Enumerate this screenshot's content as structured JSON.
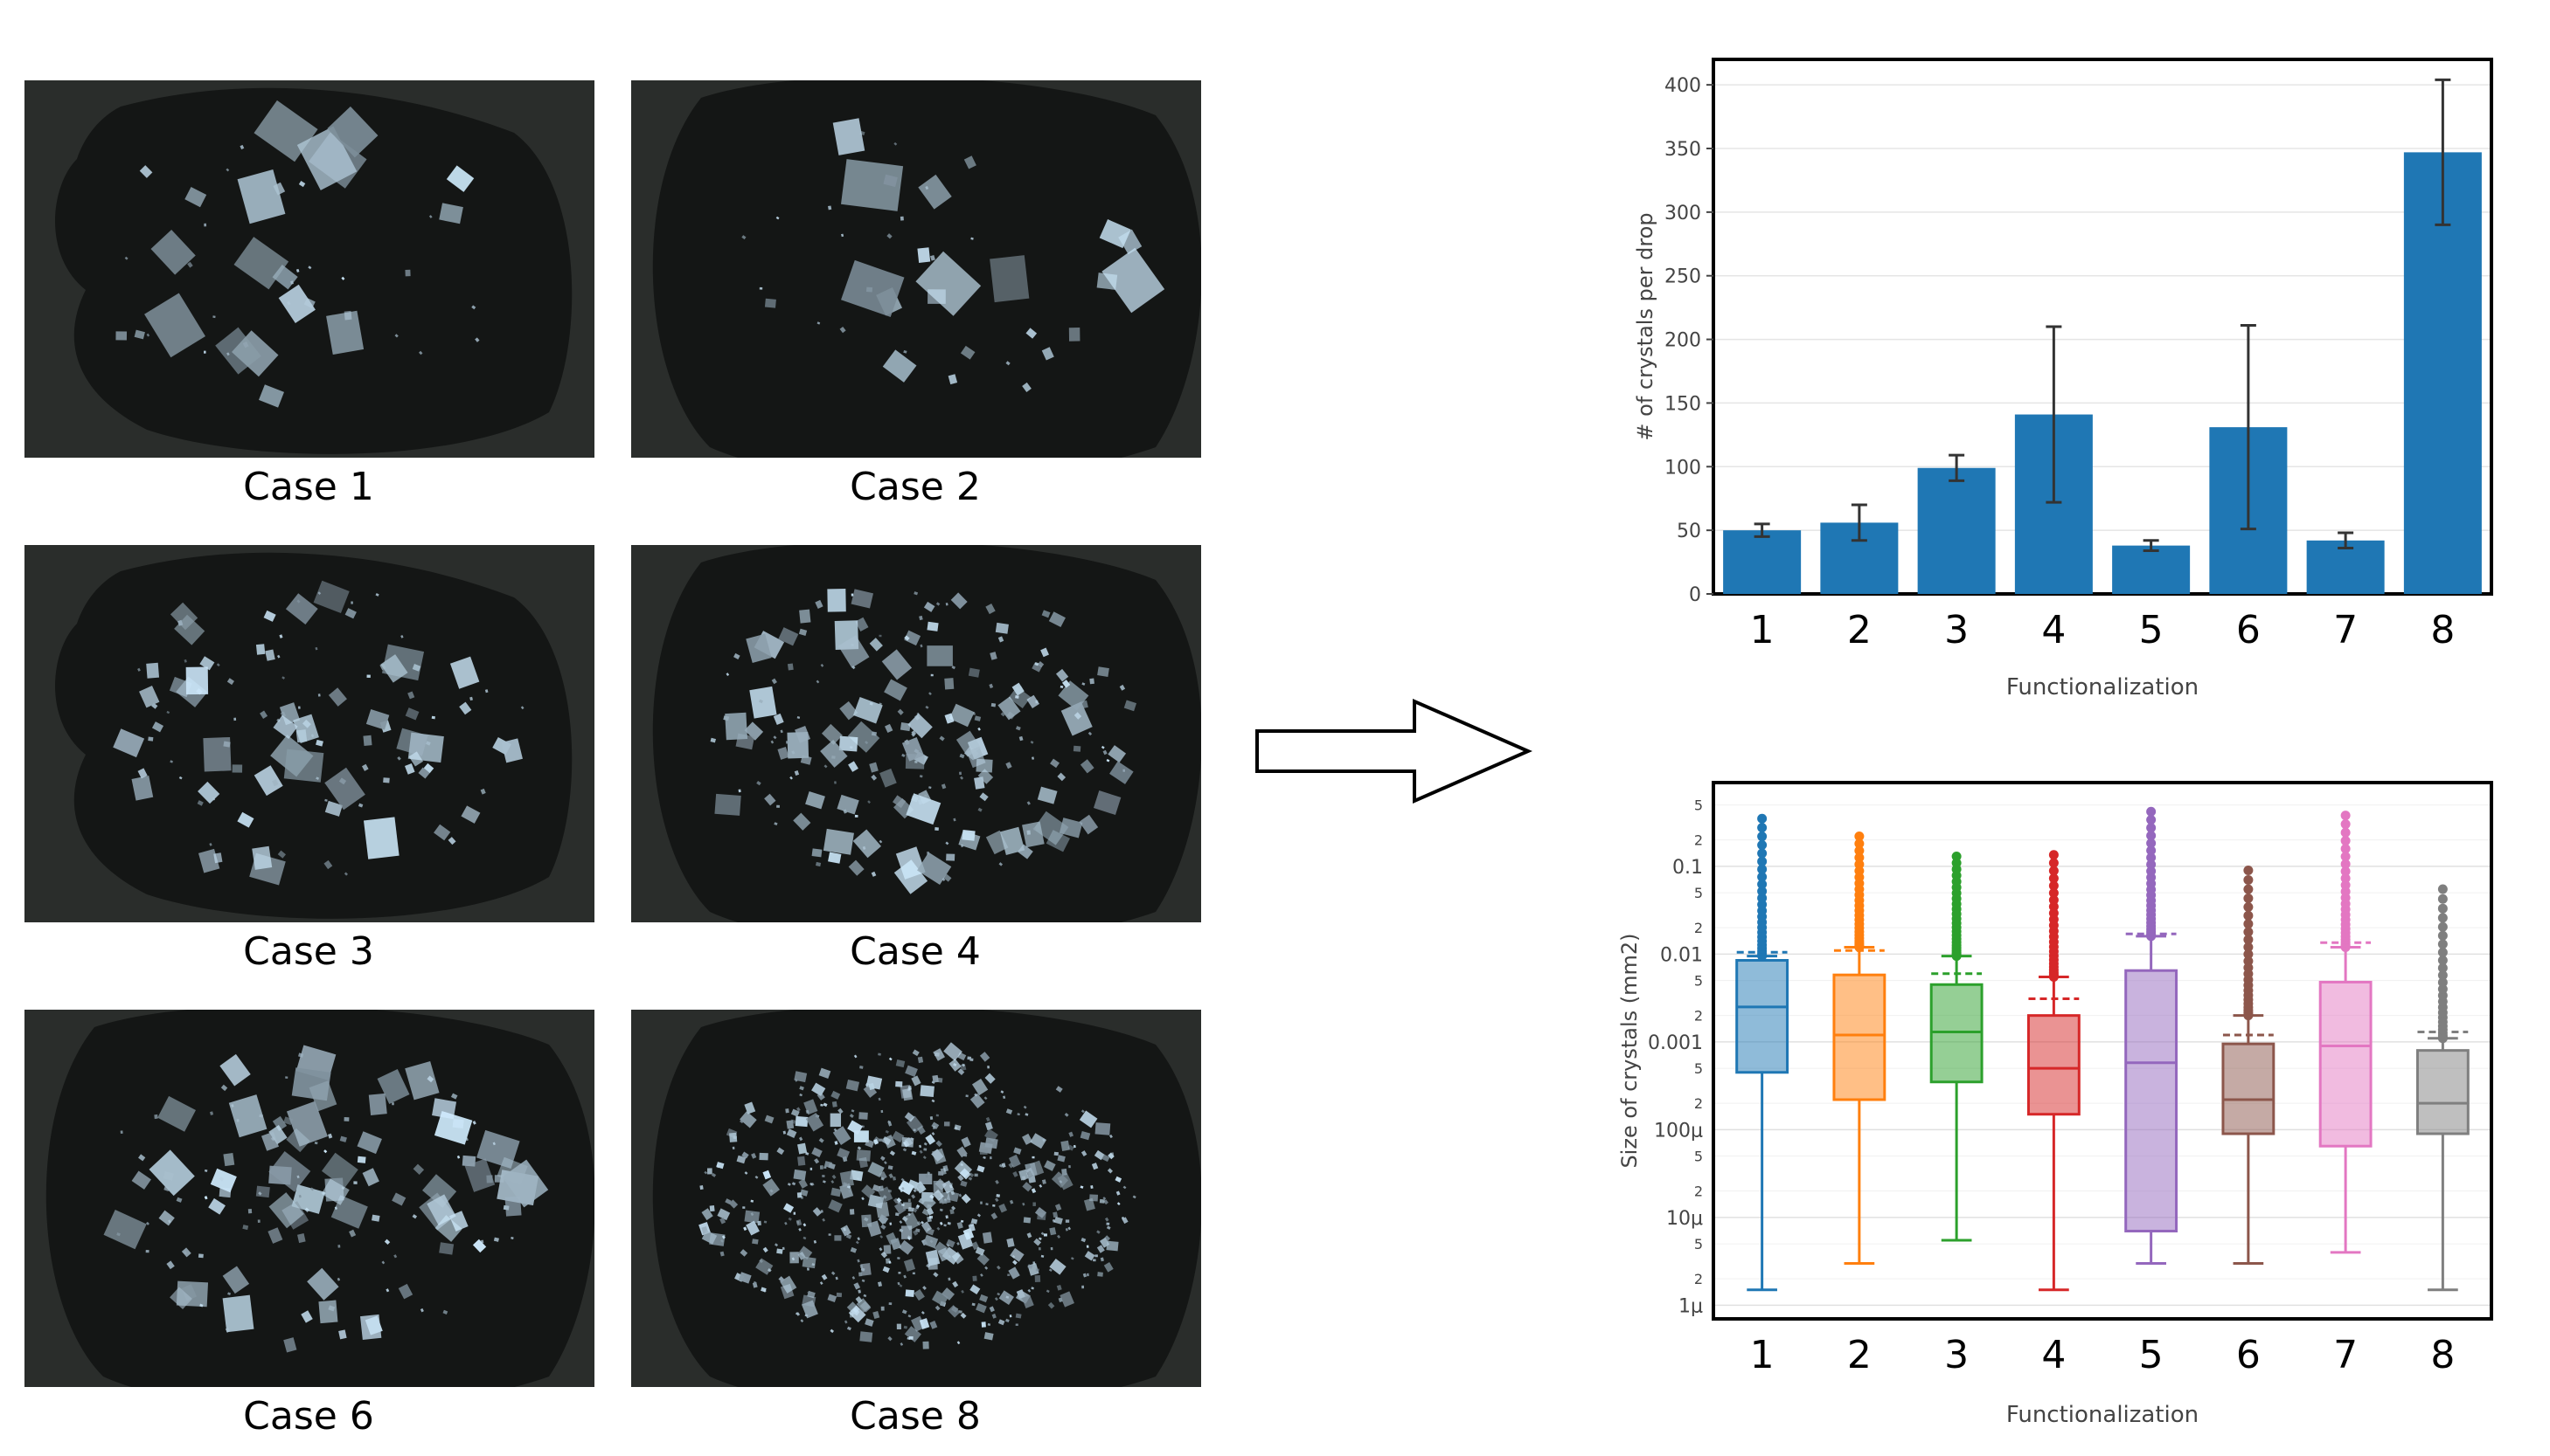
{
  "panels": [
    {
      "id": "case1",
      "caption": "Case 1",
      "crystal_count": 45,
      "max_size": 60,
      "drop_shape": "irregular"
    },
    {
      "id": "case2",
      "caption": "Case 2",
      "crystal_count": 40,
      "max_size": 70,
      "drop_shape": "round"
    },
    {
      "id": "case3",
      "caption": "Case 3",
      "crystal_count": 110,
      "max_size": 42,
      "drop_shape": "irregular"
    },
    {
      "id": "case4",
      "caption": "Case 4",
      "crystal_count": 220,
      "max_size": 30,
      "drop_shape": "round"
    },
    {
      "id": "case6",
      "caption": "Case 6",
      "crystal_count": 140,
      "max_size": 40,
      "drop_shape": "round"
    },
    {
      "id": "case8",
      "caption": "Case 8",
      "crystal_count": 650,
      "max_size": 14,
      "drop_shape": "round"
    }
  ],
  "chart_data": [
    {
      "type": "bar",
      "categories": [
        "1",
        "2",
        "3",
        "4",
        "5",
        "6",
        "7",
        "8"
      ],
      "values": [
        50,
        56,
        99,
        141,
        38,
        131,
        42,
        347
      ],
      "errors": [
        5,
        14,
        10,
        69,
        4,
        80,
        6,
        57
      ],
      "ylabel": "# of crystals per drop",
      "xlabel": "Functionalization",
      "ylim": [
        0,
        420
      ],
      "yticks": [
        0,
        50,
        100,
        150,
        200,
        250,
        300,
        350,
        400
      ],
      "bar_color": "#1f77b4",
      "grid": true
    },
    {
      "type": "box",
      "categories": [
        "1",
        "2",
        "3",
        "4",
        "5",
        "6",
        "7",
        "8"
      ],
      "ylabel": "Size of crystals (mm2)",
      "xlabel": "Functionalization",
      "yscale": "log",
      "ylim": [
        7e-07,
        0.9
      ],
      "major_ticks": [
        {
          "v": 1e-06,
          "label": "1μ"
        },
        {
          "v": 1e-05,
          "label": "10μ"
        },
        {
          "v": 0.0001,
          "label": "100μ"
        },
        {
          "v": 0.001,
          "label": "0.001"
        },
        {
          "v": 0.01,
          "label": "0.01"
        },
        {
          "v": 0.1,
          "label": "0.1"
        }
      ],
      "minor_ticks": [
        {
          "v": 2e-06,
          "label": "2"
        },
        {
          "v": 5e-06,
          "label": "5"
        },
        {
          "v": 2e-05,
          "label": "2"
        },
        {
          "v": 5e-05,
          "label": "5"
        },
        {
          "v": 0.0002,
          "label": "2"
        },
        {
          "v": 0.0005,
          "label": "5"
        },
        {
          "v": 0.002,
          "label": "2"
        },
        {
          "v": 0.005,
          "label": "5"
        },
        {
          "v": 0.02,
          "label": "2"
        },
        {
          "v": 0.05,
          "label": "5"
        },
        {
          "v": 0.2,
          "label": "2"
        },
        {
          "v": 0.5,
          "label": "5"
        }
      ],
      "series": [
        {
          "color": "#1f77b4",
          "min": 1.5e-06,
          "q1": 0.00045,
          "median": 0.0025,
          "q3": 0.0085,
          "upper": 0.0095,
          "mean": 0.0105,
          "outlier_top": 0.35
        },
        {
          "color": "#ff7f0e",
          "min": 3e-06,
          "q1": 0.00022,
          "median": 0.0012,
          "q3": 0.0058,
          "upper": 0.012,
          "mean": 0.011,
          "outlier_top": 0.22
        },
        {
          "color": "#2ca02c",
          "min": 5.5e-06,
          "q1": 0.00035,
          "median": 0.0013,
          "q3": 0.0045,
          "upper": 0.0095,
          "mean": 0.006,
          "outlier_top": 0.13
        },
        {
          "color": "#d62728",
          "min": 1.5e-06,
          "q1": 0.00015,
          "median": 0.0005,
          "q3": 0.002,
          "upper": 0.0055,
          "mean": 0.0031,
          "outlier_top": 0.135
        },
        {
          "color": "#9467bd",
          "min": 3e-06,
          "q1": 7e-06,
          "median": 0.00058,
          "q3": 0.0065,
          "upper": 0.016,
          "mean": 0.017,
          "outlier_top": 0.42
        },
        {
          "color": "#8c564b",
          "min": 3e-06,
          "q1": 9e-05,
          "median": 0.00022,
          "q3": 0.00095,
          "upper": 0.002,
          "mean": 0.0012,
          "outlier_top": 0.09
        },
        {
          "color": "#e377c2",
          "min": 4e-06,
          "q1": 6.5e-05,
          "median": 0.0009,
          "q3": 0.0048,
          "upper": 0.012,
          "mean": 0.0135,
          "outlier_top": 0.38
        },
        {
          "color": "#7f7f7f",
          "min": 1.5e-06,
          "q1": 9e-05,
          "median": 0.0002,
          "q3": 0.0008,
          "upper": 0.0011,
          "mean": 0.0013,
          "outlier_top": 0.055
        }
      ],
      "grid": true
    }
  ]
}
